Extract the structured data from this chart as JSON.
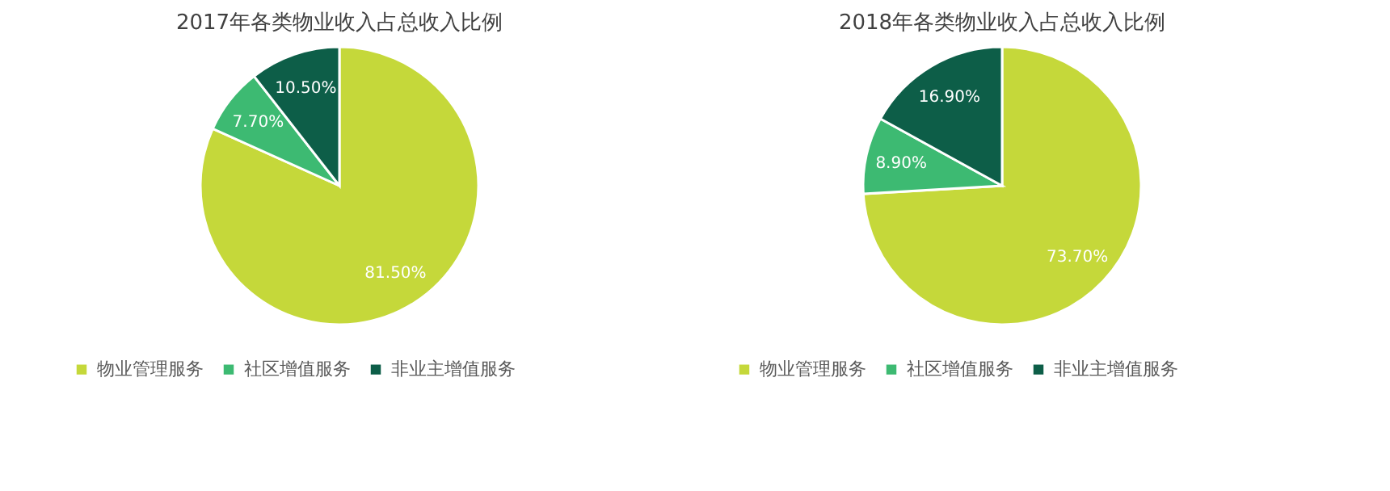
{
  "chart_data": [
    {
      "type": "pie",
      "title": "2017年各类物业收入占总收入比例",
      "categories": [
        "物业管理服务",
        "社区增值服务",
        "非业主增值服务"
      ],
      "values": [
        81.5,
        7.7,
        10.5
      ],
      "value_labels": [
        "81.50%",
        "7.70%",
        "10.50%"
      ],
      "colors": [
        "#c5d83a",
        "#3dba72",
        "#0d5e48"
      ],
      "legend": "bottom"
    },
    {
      "type": "pie",
      "title": "2018年各类物业收入占总收入比例",
      "categories": [
        "物业管理服务",
        "社区增值服务",
        "非业主增值服务"
      ],
      "values": [
        73.7,
        8.9,
        16.9
      ],
      "value_labels": [
        "73.70%",
        "8.90%",
        "16.90%"
      ],
      "colors": [
        "#c5d83a",
        "#3dba72",
        "#0d5e48"
      ],
      "legend": "bottom"
    }
  ]
}
